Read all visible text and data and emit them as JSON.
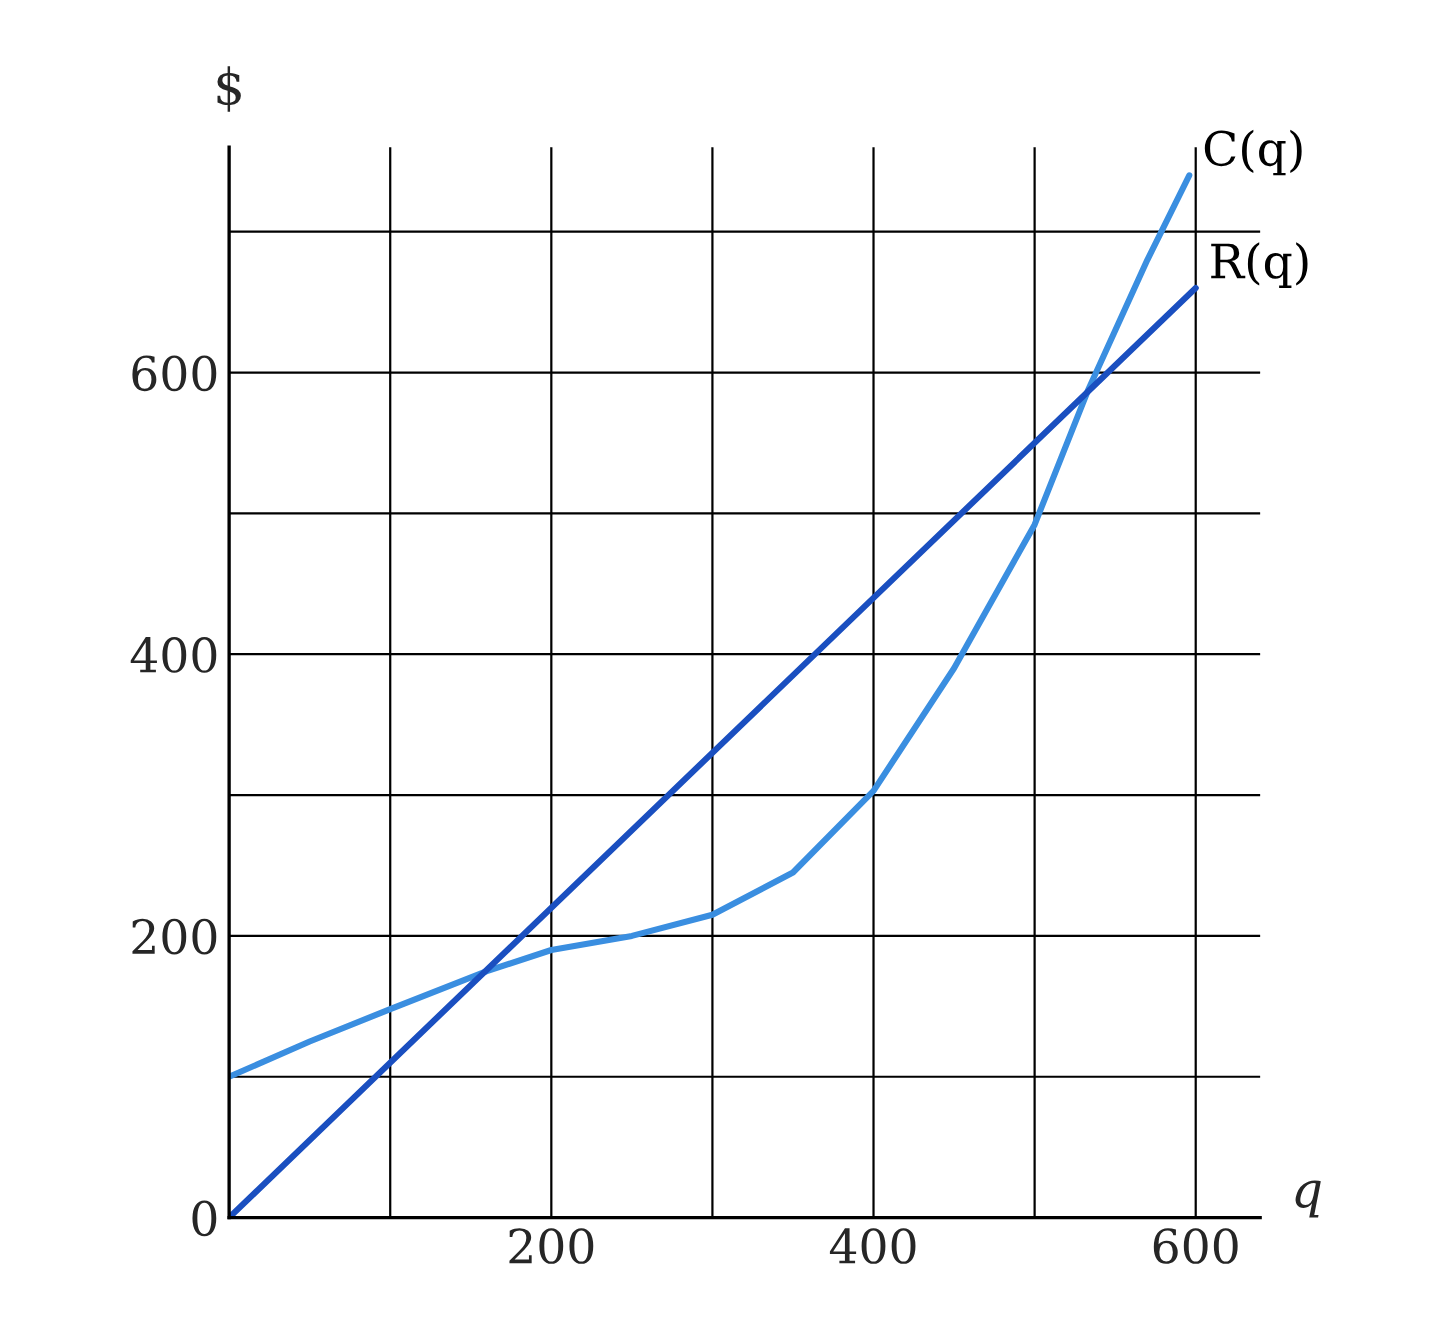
{
  "chart_data": {
    "type": "line",
    "xlabel": "q",
    "ylabel": "$",
    "xlim": [
      0,
      640
    ],
    "ylim": [
      0,
      760
    ],
    "xticks": [
      {
        "value": 100,
        "label": null
      },
      {
        "value": 200,
        "label": "200"
      },
      {
        "value": 300,
        "label": null
      },
      {
        "value": 400,
        "label": "400"
      },
      {
        "value": 500,
        "label": null
      },
      {
        "value": 600,
        "label": "600"
      }
    ],
    "yticks": [
      0,
      {
        "value": 100,
        "label": null
      },
      200,
      {
        "value": 300,
        "label": null
      },
      400,
      {
        "value": 500,
        "label": null
      },
      600,
      {
        "value": 700,
        "label": null
      }
    ],
    "grid": true,
    "marker": "none",
    "line_style": "solid",
    "series": [
      {
        "name": "C(q)",
        "color": "#3a8ee0",
        "x": [
          0,
          50,
          100,
          160,
          200,
          250,
          300,
          350,
          400,
          450,
          500,
          533,
          570,
          596
        ],
        "values": [
          100,
          125,
          148,
          175,
          190,
          200,
          215,
          245,
          303,
          390,
          492,
          587,
          680,
          740
        ]
      },
      {
        "name": "R(q)",
        "color": "#1a4fc0",
        "x": [
          0,
          600
        ],
        "values": [
          0,
          660
        ]
      }
    ]
  }
}
